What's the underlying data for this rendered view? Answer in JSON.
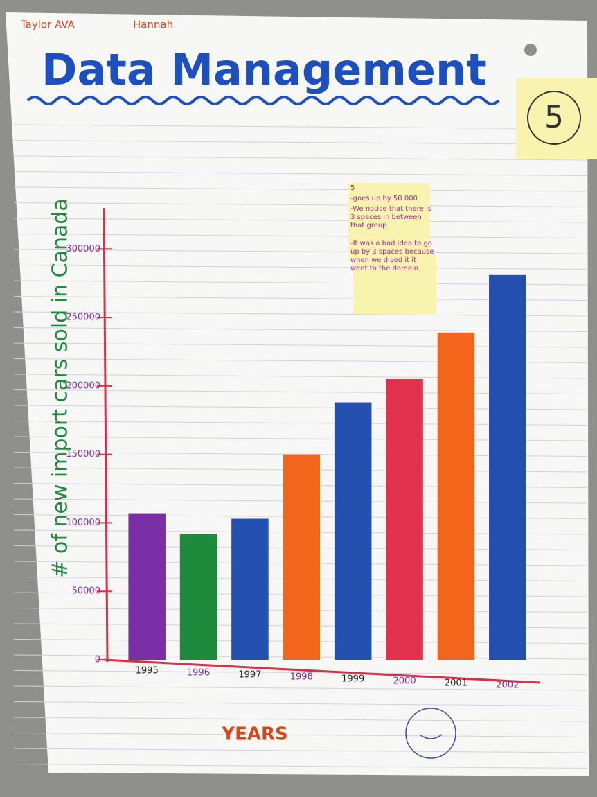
{
  "chart_data": {
    "type": "bar",
    "authors": [
      "Taylor AVA",
      "Hannah"
    ],
    "title": "Data Management",
    "badge": "5",
    "y_label": "# of new import cars sold in Canada",
    "x_label": "YEARS",
    "notes": [
      "5",
      "-goes up by 50 000",
      "-We notice that there is 3 spaces in between that group",
      "-It was a bad idea to go up by 3 spaces because when we dived it it went to the domain"
    ],
    "categories": [
      "1995",
      "1996",
      "1997",
      "1998",
      "1999",
      "2000",
      "2001",
      "2002"
    ],
    "values": [
      107000,
      92000,
      103000,
      150000,
      188000,
      205000,
      239000,
      281000
    ],
    "colors": [
      "#7a2fa6",
      "#1e8a3c",
      "#2450b0",
      "#f2661c",
      "#2450b0",
      "#e0324c",
      "#f2661c",
      "#2450b0"
    ],
    "ylim": [
      0,
      330000
    ],
    "yticks": [
      0,
      50000,
      100000,
      150000,
      200000,
      250000,
      300000
    ],
    "grid": false
  }
}
